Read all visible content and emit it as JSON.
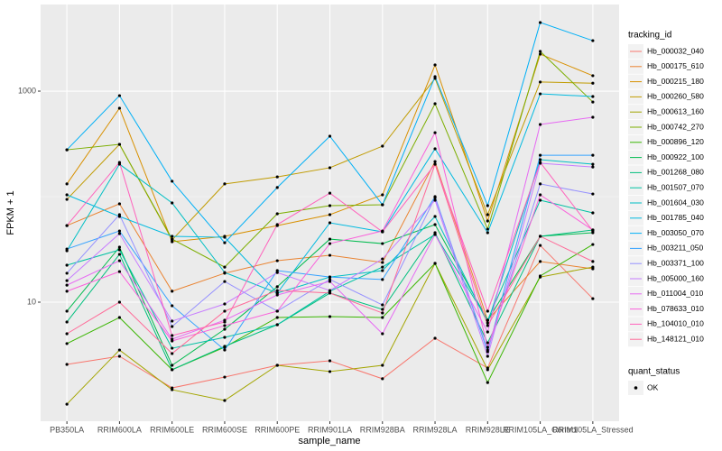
{
  "chart_data": {
    "type": "line",
    "log_y": true,
    "grid": true,
    "x_label": "sample_name",
    "y_label": "FPKM + 1",
    "legend_title": "tracking_id",
    "legend_position": "right",
    "shape_legend": {
      "title": "quant_status",
      "labels": [
        "OK"
      ]
    },
    "categories": [
      "PB350LA",
      "RRIM600LA",
      "RRIM600LE",
      "RRIM600SE",
      "RRIM600PE",
      "RRIM901LA",
      "RRIM928BA",
      "RRIM928LA",
      "RRIM928LE",
      "RRIM105LA_Control",
      "RRIM105LA_Stressed"
    ],
    "ylim": [
      0.744,
      6620
    ],
    "yticks": [
      10,
      1000
    ],
    "series": [
      {
        "name": "Hb_000032_040",
        "color": "#F8766D",
        "values": [
          2.57,
          3.07,
          1.54,
          1.95,
          2.52,
          2.78,
          1.88,
          4.55,
          2.38,
          34.5,
          10.8
        ]
      },
      {
        "name": "Hb_000175_610",
        "color": "#EA8331",
        "values": [
          53.2,
          85.5,
          12.7,
          18.8,
          24.7,
          27.8,
          23.8,
          215,
          6.75,
          24.3,
          20.7
        ]
      },
      {
        "name": "Hb_000215_180",
        "color": "#D89000",
        "values": [
          132,
          689,
          37.4,
          42.1,
          53.2,
          67.5,
          104,
          1770,
          58.8,
          2240,
          1400
        ]
      },
      {
        "name": "Hb_000260_580",
        "color": "#C09B00",
        "values": [
          94.2,
          313,
          38.9,
          132,
          154,
          188,
          301,
          1320,
          67.5,
          1220,
          1190
        ]
      },
      {
        "name": "Hb_000613_160",
        "color": "#A3A500",
        "values": [
          1.08,
          3.52,
          1.48,
          1.17,
          2.52,
          2.2,
          2.52,
          23.3,
          2.29,
          17.3,
          21.5
        ]
      },
      {
        "name": "Hb_000742_270",
        "color": "#7CAE00",
        "values": [
          278,
          313,
          39.6,
          21.5,
          68.8,
          82.2,
          83.8,
          759,
          49.2,
          2380,
          789
        ]
      },
      {
        "name": "Hb_000896_120",
        "color": "#39B600",
        "values": [
          4.05,
          7.16,
          2.29,
          3.74,
          7.16,
          7.3,
          7.16,
          23.3,
          1.73,
          17.7,
          35.2
        ]
      },
      {
        "name": "Hb_000922_100",
        "color": "#00BB4E",
        "values": [
          8.22,
          33.2,
          2.52,
          5.54,
          14.0,
          39.6,
          35.9,
          54.3,
          6.75,
          42.1,
          45.5
        ]
      },
      {
        "name": "Hb_001268_080",
        "color": "#00BF7D",
        "values": [
          6.49,
          28.4,
          2.29,
          3.81,
          6.11,
          12.2,
          8.55,
          45.5,
          4.12,
          42.1,
          48.3
        ]
      },
      {
        "name": "Hb_001507_070",
        "color": "#00C1A3",
        "values": [
          22.4,
          31.3,
          3.66,
          4.64,
          6.11,
          12.7,
          21.5,
          43.8,
          6.75,
          92.5,
          70.2
        ]
      },
      {
        "name": "Hb_001604_030",
        "color": "#00BFC4",
        "values": [
          30.7,
          203,
          87.1,
          19.1,
          12.2,
          17.3,
          19.9,
          64.9,
          6.36,
          224,
          203
        ]
      },
      {
        "name": "Hb_001785_040",
        "color": "#00BAE0",
        "values": [
          104,
          64.9,
          42.1,
          41.2,
          12.2,
          56.5,
          46.4,
          284,
          45.5,
          942,
          889
        ]
      },
      {
        "name": "Hb_003050_070",
        "color": "#00B0F6",
        "values": [
          278,
          906,
          140,
          36.6,
          122,
          374,
          83.8,
          1370,
          82.2,
          4470,
          3010
        ]
      },
      {
        "name": "Hb_003211_050",
        "color": "#35A2FF",
        "values": [
          31.9,
          47.3,
          9.25,
          3.52,
          19.9,
          17.3,
          16.4,
          100,
          3.39,
          247,
          247
        ]
      },
      {
        "name": "Hb_003371_100",
        "color": "#9590FF",
        "values": [
          18.8,
          67.5,
          5.88,
          15.7,
          8.22,
          16.4,
          9.42,
          97.9,
          3.52,
          132,
          106
        ]
      },
      {
        "name": "Hb_005000_160",
        "color": "#C77CFF",
        "values": [
          16.0,
          44.6,
          6.62,
          9.61,
          19.1,
          12.9,
          25.7,
          92.5,
          3.07,
          207,
          191
        ]
      },
      {
        "name": "Hb_011004_010",
        "color": "#E76BF3",
        "values": [
          14.5,
          24.7,
          4.46,
          6.75,
          11.7,
          15.7,
          5.02,
          43.8,
          5.22,
          483,
          565
        ]
      },
      {
        "name": "Hb_078633_010",
        "color": "#FA62DB",
        "values": [
          12.7,
          19.5,
          4.29,
          6.0,
          8.22,
          35.9,
          47.3,
          404,
          3.74,
          104,
          48.3
        ]
      },
      {
        "name": "Hb_104010_010",
        "color": "#FF62BC",
        "values": [
          53.2,
          211,
          4.83,
          6.49,
          54.3,
          108,
          46.4,
          203,
          8.22,
          211,
          47.3
        ]
      },
      {
        "name": "Hb_148121_010",
        "color": "#FF6A98",
        "values": [
          5.02,
          10.0,
          3.26,
          8.22,
          12.9,
          12.2,
          7.89,
          203,
          6.0,
          42.1,
          24.3
        ]
      }
    ]
  }
}
